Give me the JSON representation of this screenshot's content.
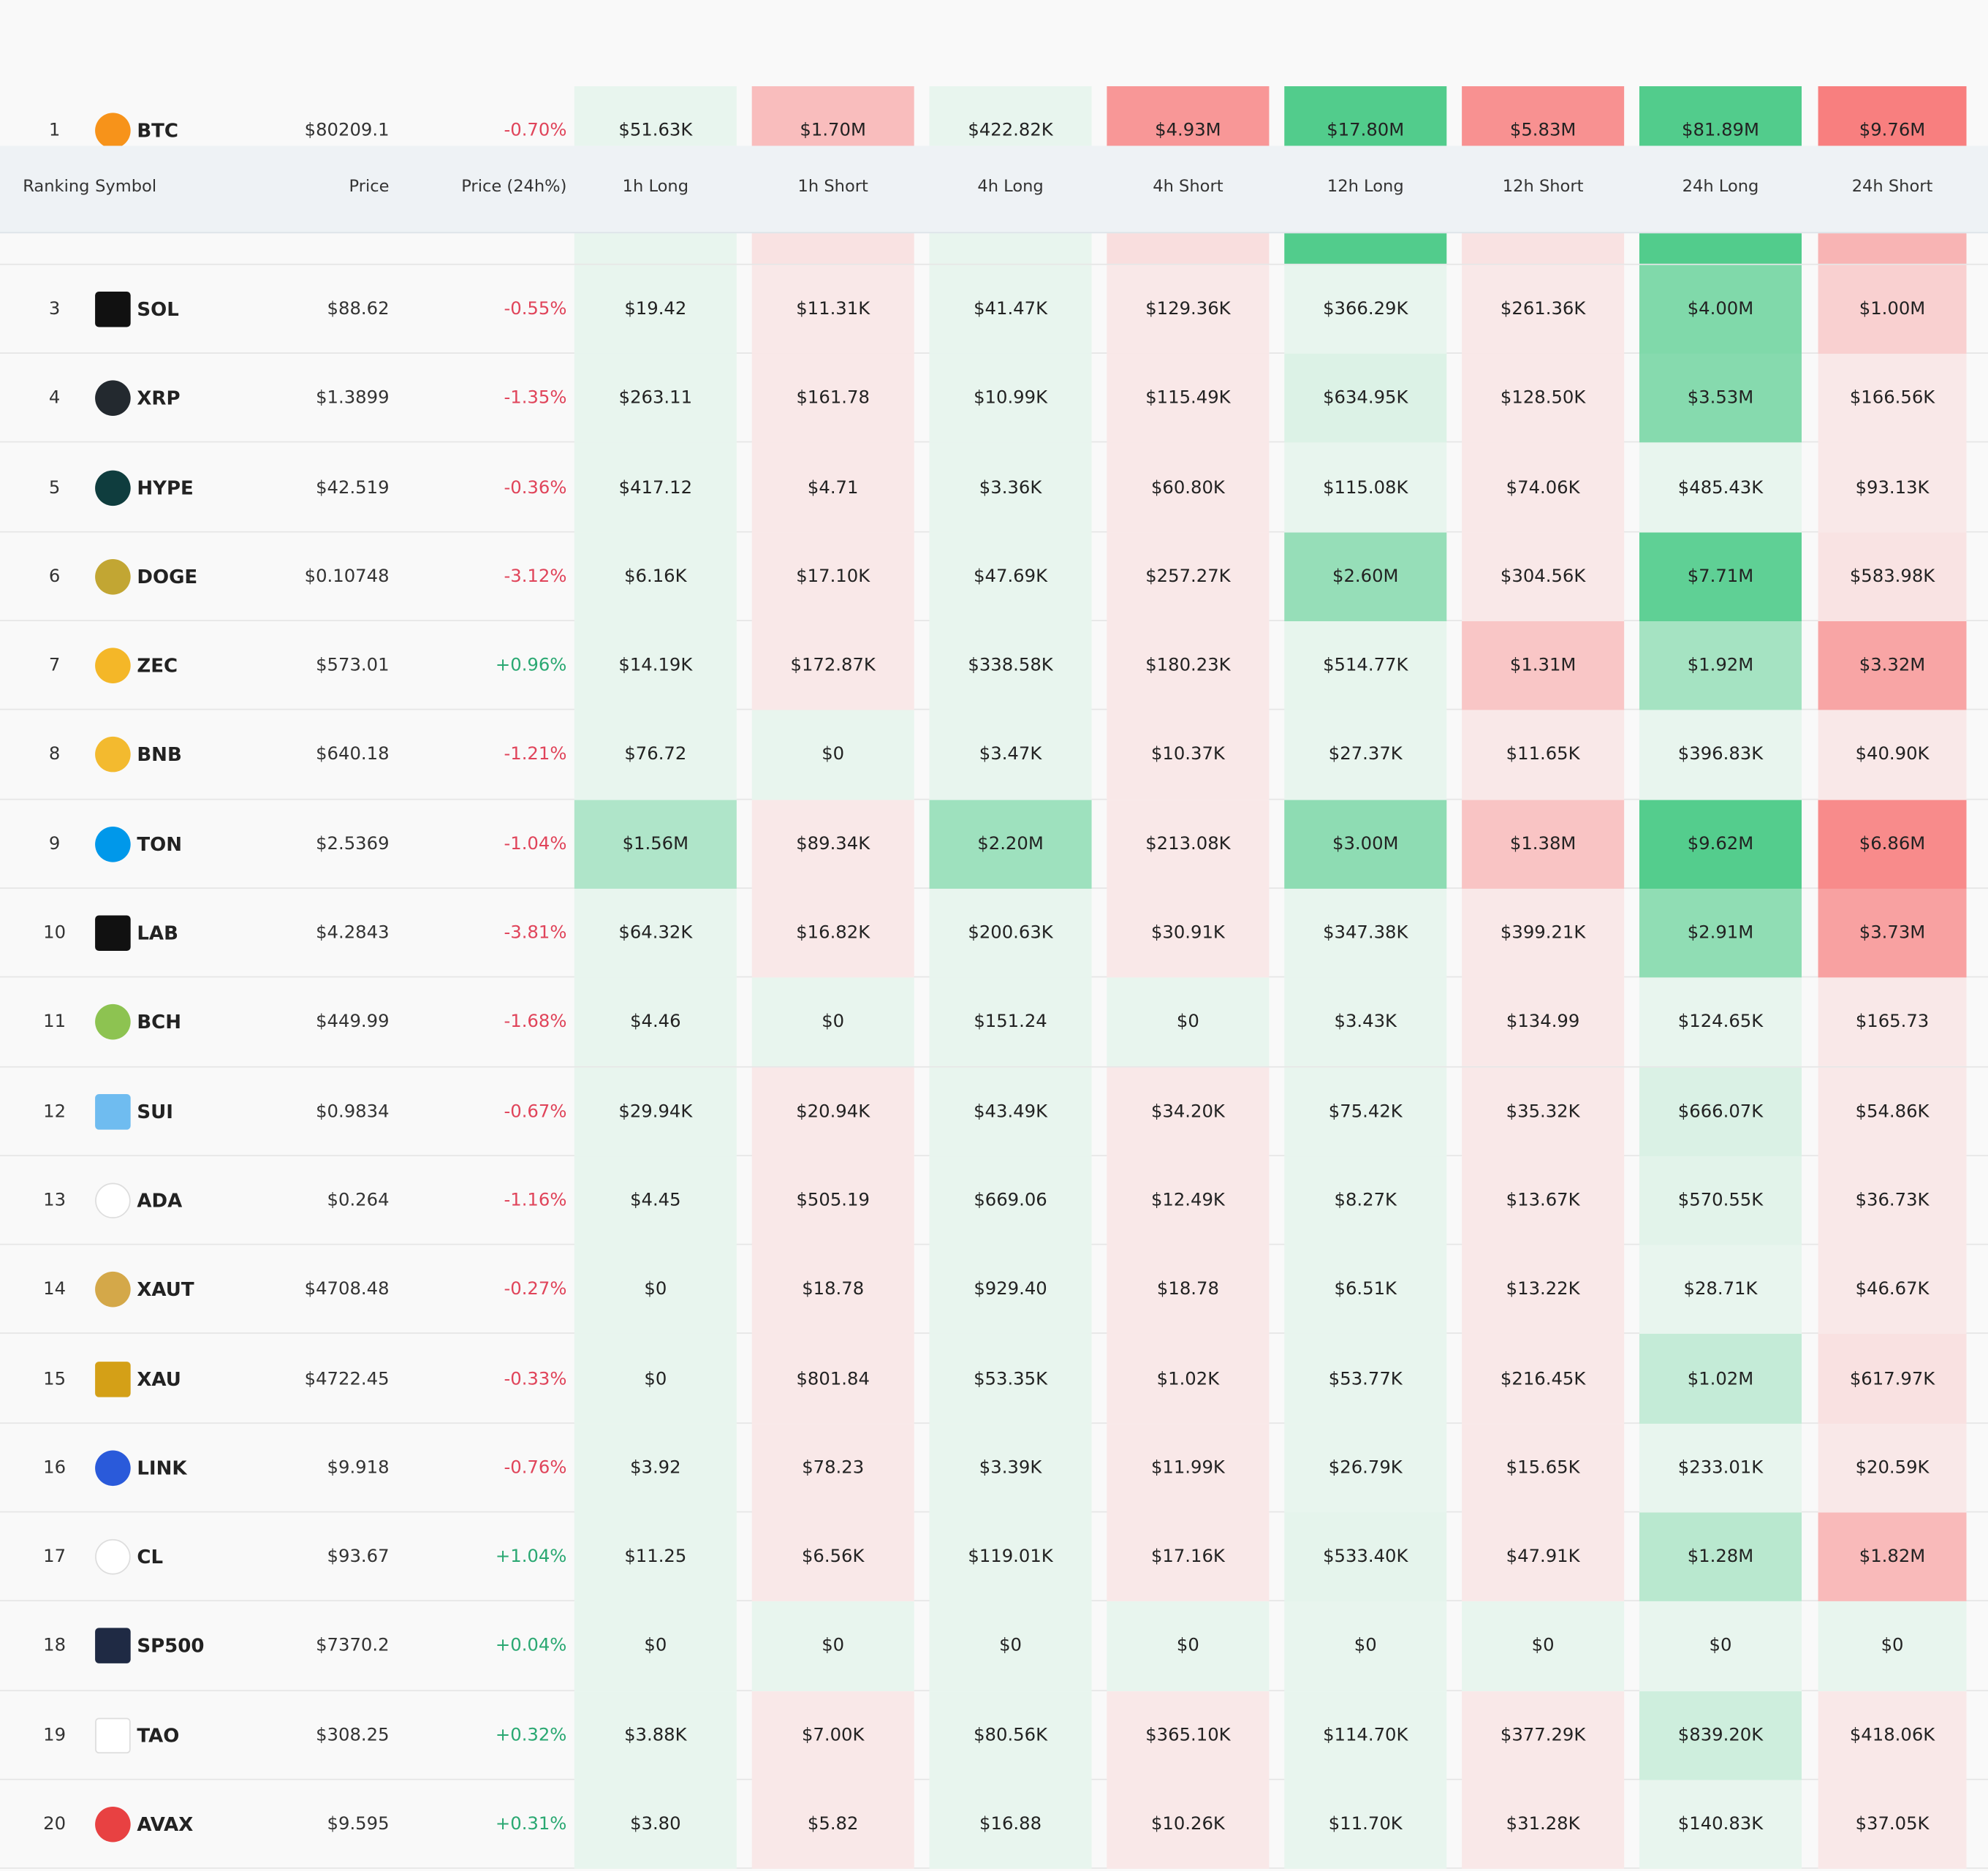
{
  "table": {
    "columns": [
      "Ranking",
      "Symbol",
      "Price",
      "Price (24h%)",
      "1h Long",
      "1h Short",
      "4h Long",
      "4h Short",
      "12h Long",
      "12h Short",
      "24h Long",
      "24h Short"
    ],
    "rows": [
      [
        "1",
        "BTC",
        "$80209.1",
        "-0.70%",
        "$51.63K",
        "$1.70M",
        "$422.82K",
        "$4.93M",
        "$17.80M",
        "$5.83M",
        "$81.89M",
        "$9.76M"
      ],
      [
        "3",
        "SOL",
        "$88.62",
        "-0.55%",
        "$19.42",
        "$11.31K",
        "$41.47K",
        "$129.36K",
        "$366.29K",
        "$261.36K",
        "$4.00M",
        "$1.00M"
      ],
      [
        "4",
        "XRP",
        "$1.3899",
        "-1.35%",
        "$263.11",
        "$161.78",
        "$10.99K",
        "$115.49K",
        "$634.95K",
        "$128.50K",
        "$3.53M",
        "$166.56K"
      ],
      [
        "5",
        "HYPE",
        "$42.519",
        "-0.36%",
        "$417.12",
        "$4.71",
        "$3.36K",
        "$60.80K",
        "$115.08K",
        "$74.06K",
        "$485.43K",
        "$93.13K"
      ],
      [
        "6",
        "DOGE",
        "$0.10748",
        "-3.12%",
        "$6.16K",
        "$17.10K",
        "$47.69K",
        "$257.27K",
        "$2.60M",
        "$304.56K",
        "$7.71M",
        "$583.98K"
      ],
      [
        "7",
        "ZEC",
        "$573.01",
        "+0.96%",
        "$14.19K",
        "$172.87K",
        "$338.58K",
        "$180.23K",
        "$514.77K",
        "$1.31M",
        "$1.92M",
        "$3.32M"
      ],
      [
        "8",
        "BNB",
        "$640.18",
        "-1.21%",
        "$76.72",
        "$0",
        "$3.47K",
        "$10.37K",
        "$27.37K",
        "$11.65K",
        "$396.83K",
        "$40.90K"
      ],
      [
        "9",
        "TON",
        "$2.5369",
        "-1.04%",
        "$1.56M",
        "$89.34K",
        "$2.20M",
        "$213.08K",
        "$3.00M",
        "$1.38M",
        "$9.62M",
        "$6.86M"
      ],
      [
        "10",
        "LAB",
        "$4.2843",
        "-3.81%",
        "$64.32K",
        "$16.82K",
        "$200.63K",
        "$30.91K",
        "$347.38K",
        "$399.21K",
        "$2.91M",
        "$3.73M"
      ],
      [
        "11",
        "BCH",
        "$449.99",
        "-1.68%",
        "$4.46",
        "$0",
        "$151.24",
        "$0",
        "$3.43K",
        "$134.99",
        "$124.65K",
        "$165.73"
      ],
      [
        "12",
        "SUI",
        "$0.9834",
        "-0.67%",
        "$29.94K",
        "$20.94K",
        "$43.49K",
        "$34.20K",
        "$75.42K",
        "$35.32K",
        "$666.07K",
        "$54.86K"
      ],
      [
        "13",
        "ADA",
        "$0.264",
        "-1.16%",
        "$4.45",
        "$505.19",
        "$669.06",
        "$12.49K",
        "$8.27K",
        "$13.67K",
        "$570.55K",
        "$36.73K"
      ],
      [
        "14",
        "XAUT",
        "$4708.48",
        "-0.27%",
        "$0",
        "$18.78",
        "$929.40",
        "$18.78",
        "$6.51K",
        "$13.22K",
        "$28.71K",
        "$46.67K"
      ],
      [
        "15",
        "XAU",
        "$4722.45",
        "-0.33%",
        "$0",
        "$801.84",
        "$53.35K",
        "$1.02K",
        "$53.77K",
        "$216.45K",
        "$1.02M",
        "$617.97K"
      ],
      [
        "16",
        "LINK",
        "$9.918",
        "-0.76%",
        "$3.92",
        "$78.23",
        "$3.39K",
        "$11.99K",
        "$26.79K",
        "$15.65K",
        "$233.01K",
        "$20.59K"
      ],
      [
        "17",
        "CL",
        "$93.67",
        "+1.04%",
        "$11.25",
        "$6.56K",
        "$119.01K",
        "$17.16K",
        "$533.40K",
        "$47.91K",
        "$1.28M",
        "$1.82M"
      ],
      [
        "18",
        "SP500",
        "$7370.2",
        "+0.04%",
        "$0",
        "$0",
        "$0",
        "$0",
        "$0",
        "$0",
        "$0",
        "$0"
      ],
      [
        "19",
        "TAO",
        "$308.25",
        "+0.32%",
        "$3.88K",
        "$7.00K",
        "$80.56K",
        "$365.10K",
        "$114.70K",
        "$377.29K",
        "$839.20K",
        "$418.06K"
      ],
      [
        "20",
        "AVAX",
        "$9.595",
        "+0.31%",
        "$3.80",
        "$5.82",
        "$16.88",
        "$10.26K",
        "$11.70K",
        "$31.28K",
        "$140.83K",
        "$37.05K"
      ]
    ]
  }
}
